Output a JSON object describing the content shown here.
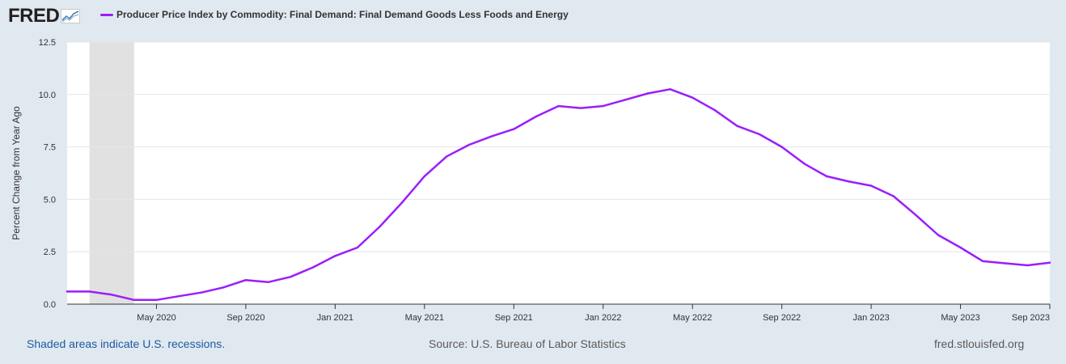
{
  "brand": {
    "logo": "FRED",
    "logo_icon": "trend-graph-icon"
  },
  "colors": {
    "series": "#9B1EFA",
    "recession": "#e1e1e1",
    "grid": "#e6e6e6",
    "background": "#e1e9f0",
    "plot_bg": "#ffffff",
    "link": "#1e5aa0"
  },
  "chart_data": {
    "type": "line",
    "title": "Producer Price Index by Commodity: Final Demand: Final Demand Goods Less Foods and Energy",
    "ylabel": "Percent Change from Year Ago",
    "xlabel": "",
    "ylim": [
      0,
      12.5
    ],
    "yticks": [
      "0.0",
      "2.5",
      "5.0",
      "7.5",
      "10.0",
      "12.5"
    ],
    "x_ticks": [
      {
        "label": "May 2020",
        "month": 4
      },
      {
        "label": "Sep 2020",
        "month": 8
      },
      {
        "label": "Jan 2021",
        "month": 12
      },
      {
        "label": "May 2021",
        "month": 16
      },
      {
        "label": "Sep 2021",
        "month": 20
      },
      {
        "label": "Jan 2022",
        "month": 24
      },
      {
        "label": "May 2022",
        "month": 28
      },
      {
        "label": "Sep 2022",
        "month": 32
      },
      {
        "label": "Jan 2023",
        "month": 36
      },
      {
        "label": "May 2023",
        "month": 40
      },
      {
        "label": "Sep 2023",
        "month": 44
      }
    ],
    "x_start": "2020-01",
    "recession": {
      "start_month": 1,
      "end_month": 3
    },
    "series": [
      {
        "name": "Producer Price Index by Commodity: Final Demand: Final Demand Goods Less Foods and Energy",
        "color": "#9B1EFA",
        "values": [
          0.6,
          0.6,
          0.45,
          0.2,
          0.2,
          0.38,
          0.55,
          0.8,
          1.15,
          1.05,
          1.3,
          1.75,
          2.3,
          2.7,
          3.7,
          4.85,
          6.1,
          7.05,
          7.6,
          8.0,
          8.35,
          8.95,
          9.45,
          9.35,
          9.45,
          9.75,
          10.05,
          10.25,
          9.85,
          9.25,
          8.5,
          8.1,
          7.5,
          6.7,
          6.1,
          5.85,
          5.65,
          5.15,
          4.25,
          3.3,
          2.7,
          2.05,
          1.95,
          1.85,
          1.98
        ]
      }
    ]
  },
  "footer": {
    "recession_note": "Shaded areas indicate U.S. recessions.",
    "source": "Source: U.S. Bureau of Labor Statistics",
    "site": "fred.stlouisfed.org"
  }
}
